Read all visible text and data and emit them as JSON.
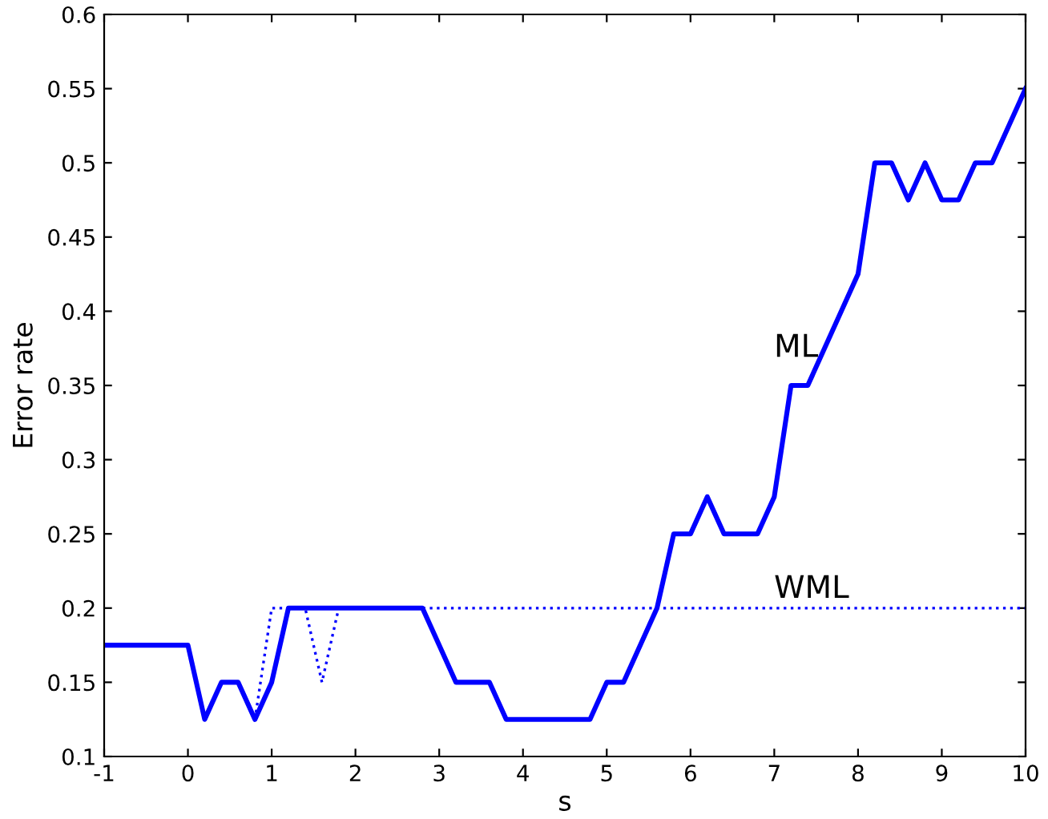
{
  "chart_data": {
    "type": "line",
    "xlabel": "s",
    "ylabel": "Error rate",
    "xlim": [
      -1,
      10
    ],
    "xticks": [
      -1,
      0,
      1,
      2,
      3,
      4,
      5,
      6,
      7,
      8,
      9,
      10
    ],
    "ylim": [
      0.1,
      0.6
    ],
    "yticks": [
      0.1,
      0.15,
      0.2,
      0.25,
      0.3,
      0.35,
      0.4,
      0.45,
      0.5,
      0.55,
      0.6
    ],
    "grid": false,
    "legend": false,
    "series": [
      {
        "name": "ML",
        "color": "#0000ff",
        "line_style": "solid",
        "x": [
          -1,
          0,
          0.2,
          0.4,
          0.6,
          0.8,
          1.0,
          1.2,
          2.8,
          3.2,
          3.6,
          3.8,
          4.8,
          5.0,
          5.2,
          5.6,
          5.8,
          6.0,
          6.2,
          6.4,
          6.8,
          7.0,
          7.2,
          7.4,
          8.0,
          8.2,
          8.4,
          8.6,
          8.8,
          9.0,
          9.2,
          9.4,
          9.6,
          10
        ],
        "values": [
          0.175,
          0.175,
          0.125,
          0.15,
          0.15,
          0.125,
          0.15,
          0.2,
          0.2,
          0.15,
          0.15,
          0.125,
          0.125,
          0.15,
          0.15,
          0.2,
          0.25,
          0.25,
          0.275,
          0.25,
          0.25,
          0.275,
          0.35,
          0.35,
          0.425,
          0.5,
          0.5,
          0.475,
          0.5,
          0.475,
          0.475,
          0.5,
          0.5,
          0.55
        ]
      },
      {
        "name": "WML",
        "color": "#0000ff",
        "line_style": "dotted",
        "x": [
          0.8,
          1.0,
          1.4,
          1.6,
          1.8,
          10
        ],
        "values": [
          0.125,
          0.2,
          0.2,
          0.15,
          0.2,
          0.2
        ]
      }
    ]
  }
}
